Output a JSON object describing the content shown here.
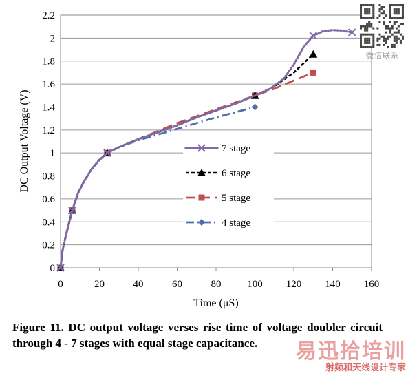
{
  "chart_data": {
    "type": "line",
    "xlabel": "Time (μS)",
    "ylabel": "DC Output Voltage (V)",
    "xlim": [
      0,
      160
    ],
    "ylim": [
      0,
      2.2
    ],
    "x_ticks": [
      "0",
      "20",
      "40",
      "60",
      "80",
      "100",
      "120",
      "140",
      "160"
    ],
    "y_ticks": [
      "0",
      "0.2",
      "0.4",
      "0.6",
      "0.8",
      "1",
      "1.2",
      "1.4",
      "1.6",
      "1.8",
      "2",
      "2.2"
    ],
    "grid": true,
    "legend_position": "center-right",
    "series": [
      {
        "name": "7 stage",
        "color": "#7f6aa6",
        "marker": "x",
        "line": "dotted",
        "points": [
          [
            0,
            0
          ],
          [
            1,
            0.15
          ],
          [
            3,
            0.3
          ],
          [
            6,
            0.5
          ],
          [
            9,
            0.65
          ],
          [
            12,
            0.75
          ],
          [
            16,
            0.86
          ],
          [
            20,
            0.94
          ],
          [
            24,
            1.0
          ],
          [
            30,
            1.05
          ],
          [
            40,
            1.12
          ],
          [
            50,
            1.18
          ],
          [
            60,
            1.24
          ],
          [
            70,
            1.31
          ],
          [
            80,
            1.37
          ],
          [
            90,
            1.43
          ],
          [
            100,
            1.5
          ],
          [
            108,
            1.56
          ],
          [
            115,
            1.65
          ],
          [
            120,
            1.77
          ],
          [
            125,
            1.92
          ],
          [
            130,
            2.02
          ],
          [
            135,
            2.06
          ],
          [
            140,
            2.07
          ],
          [
            145,
            2.065
          ],
          [
            150,
            2.05
          ]
        ],
        "marker_x": [
          0,
          6,
          24,
          130,
          150
        ]
      },
      {
        "name": "6 stage",
        "color": "#000000",
        "marker": "triangle",
        "line": "dashed",
        "points": [
          [
            0,
            0
          ],
          [
            1,
            0.15
          ],
          [
            3,
            0.3
          ],
          [
            6,
            0.5
          ],
          [
            9,
            0.65
          ],
          [
            12,
            0.75
          ],
          [
            16,
            0.86
          ],
          [
            20,
            0.94
          ],
          [
            24,
            1.0
          ],
          [
            30,
            1.05
          ],
          [
            40,
            1.12
          ],
          [
            50,
            1.18
          ],
          [
            60,
            1.24
          ],
          [
            70,
            1.31
          ],
          [
            80,
            1.37
          ],
          [
            90,
            1.43
          ],
          [
            100,
            1.5
          ],
          [
            110,
            1.58
          ],
          [
            120,
            1.7
          ],
          [
            130,
            1.86
          ]
        ],
        "marker_x": [
          0,
          6,
          24,
          100,
          130
        ]
      },
      {
        "name": "5 stage",
        "color": "#c0504d",
        "marker": "square",
        "line": "long-dash",
        "points": [
          [
            0,
            0
          ],
          [
            1,
            0.15
          ],
          [
            3,
            0.3
          ],
          [
            6,
            0.5
          ],
          [
            9,
            0.65
          ],
          [
            12,
            0.75
          ],
          [
            16,
            0.86
          ],
          [
            20,
            0.94
          ],
          [
            24,
            1.0
          ],
          [
            30,
            1.05
          ],
          [
            40,
            1.12
          ],
          [
            50,
            1.19
          ],
          [
            60,
            1.26
          ],
          [
            70,
            1.32
          ],
          [
            80,
            1.38
          ],
          [
            90,
            1.44
          ],
          [
            100,
            1.5
          ],
          [
            110,
            1.56
          ],
          [
            120,
            1.63
          ],
          [
            130,
            1.7
          ]
        ],
        "marker_x": [
          0,
          6,
          24,
          100,
          130
        ]
      },
      {
        "name": "4 stage",
        "color": "#4f6fa8",
        "marker": "diamond",
        "line": "dash-dot",
        "points": [
          [
            0,
            0
          ],
          [
            1,
            0.15
          ],
          [
            3,
            0.3
          ],
          [
            6,
            0.5
          ],
          [
            9,
            0.65
          ],
          [
            12,
            0.75
          ],
          [
            16,
            0.86
          ],
          [
            20,
            0.94
          ],
          [
            24,
            1.0
          ],
          [
            30,
            1.05
          ],
          [
            40,
            1.11
          ],
          [
            50,
            1.16
          ],
          [
            60,
            1.21
          ],
          [
            70,
            1.26
          ],
          [
            80,
            1.31
          ],
          [
            90,
            1.355
          ],
          [
            100,
            1.4
          ]
        ],
        "marker_x": [
          0,
          6,
          24,
          100
        ]
      }
    ]
  },
  "caption": "Figure 11. DC output voltage verses rise time of voltage doubler circuit through 4 - 7 stages with equal stage capacitance.",
  "watermark": {
    "brand_big": "易迅拾培训",
    "brand_small": "射频和天线设计专家",
    "qr_caption": "微信联系"
  }
}
